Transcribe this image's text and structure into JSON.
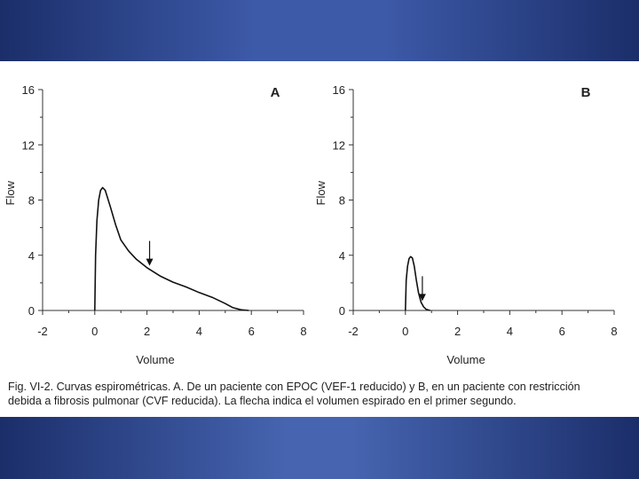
{
  "chart_data": [
    {
      "type": "line",
      "panel_label": "A",
      "xlabel": "Volume",
      "ylabel": "Flow",
      "xlim": [
        -2,
        8
      ],
      "ylim": [
        0,
        16
      ],
      "x_ticks": [
        "-2",
        "0",
        "2",
        "4",
        "6",
        "8"
      ],
      "y_ticks": [
        "0",
        "4",
        "8",
        "12",
        "16"
      ],
      "x": [
        0,
        0.03,
        0.08,
        0.15,
        0.22,
        0.3,
        0.4,
        0.6,
        0.8,
        1.0,
        1.3,
        1.6,
        2.0,
        2.5,
        3.0,
        3.5,
        4.0,
        4.5,
        5.0,
        5.3,
        5.6,
        5.9
      ],
      "values": [
        0,
        4.0,
        6.5,
        8.0,
        8.7,
        8.9,
        8.7,
        7.5,
        6.2,
        5.1,
        4.3,
        3.7,
        3.1,
        2.5,
        2.05,
        1.7,
        1.3,
        0.95,
        0.5,
        0.2,
        0.05,
        0
      ],
      "arrow_at_volume": 2.1
    },
    {
      "type": "line",
      "panel_label": "B",
      "xlabel": "Volume",
      "ylabel": "Flow",
      "xlim": [
        -2,
        8
      ],
      "ylim": [
        0,
        16
      ],
      "x_ticks": [
        "-2",
        "0",
        "2",
        "4",
        "6",
        "8"
      ],
      "y_ticks": [
        "0",
        "4",
        "8",
        "12",
        "16"
      ],
      "x": [
        0,
        0.03,
        0.08,
        0.14,
        0.2,
        0.27,
        0.34,
        0.42,
        0.5,
        0.6,
        0.7,
        0.8,
        0.95
      ],
      "values": [
        0,
        2.2,
        3.2,
        3.75,
        3.9,
        3.8,
        3.2,
        2.2,
        1.3,
        0.6,
        0.25,
        0.08,
        0
      ],
      "arrow_at_volume": 0.65
    }
  ],
  "caption_line1": "Fig. VI-2. Curvas espirométricas. A. De un paciente con EPOC (VEF-1 reducido) y B, en un paciente con restricción",
  "caption_line2": "debida a fibrosis pulmonar (CVF reducida). La flecha indica el volumen espirado en el primer segundo."
}
